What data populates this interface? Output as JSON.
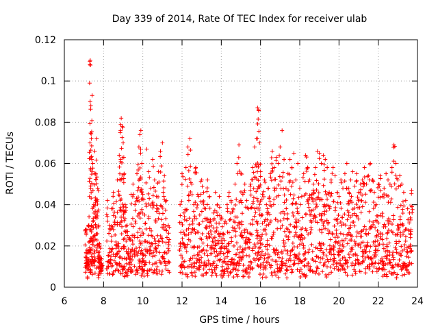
{
  "chart_data": {
    "type": "scatter",
    "title": "Day 339 of 2014, Rate Of TEC Index for receiver ulab",
    "xlabel": "GPS time / hours",
    "ylabel": "ROTI / TECUs",
    "xlim": [
      6,
      24
    ],
    "ylim": [
      0,
      0.12
    ],
    "xticks": [
      6,
      8,
      10,
      12,
      14,
      16,
      18,
      20,
      22,
      24
    ],
    "yticks": [
      0,
      0.02,
      0.04,
      0.06,
      0.08,
      0.1,
      0.12
    ],
    "xtick_labels": [
      "6",
      "8",
      "10",
      "12",
      "14",
      "16",
      "18",
      "20",
      "22",
      "24"
    ],
    "ytick_labels": [
      "0",
      "0.02",
      "0.04",
      "0.06",
      "0.08",
      "0.1",
      "0.12"
    ],
    "grid": true,
    "marker": "+",
    "marker_color": "#ff0000",
    "series": [
      {
        "name": "ROTI",
        "note": "approximate envelope of a dense scatter of + markers; each entry is [time_hours, roti_value]",
        "points": [
          [
            7.1,
            0.028
          ],
          [
            7.15,
            0.018
          ],
          [
            7.2,
            0.012
          ],
          [
            7.25,
            0.03
          ],
          [
            7.3,
            0.108
          ],
          [
            7.32,
            0.11
          ],
          [
            7.35,
            0.088
          ],
          [
            7.38,
            0.072
          ],
          [
            7.42,
            0.093
          ],
          [
            7.45,
            0.06
          ],
          [
            7.5,
            0.04
          ],
          [
            7.55,
            0.066
          ],
          [
            7.6,
            0.055
          ],
          [
            7.65,
            0.072
          ],
          [
            7.7,
            0.048
          ],
          [
            7.75,
            0.03
          ],
          [
            7.8,
            0.02
          ],
          [
            7.85,
            0.014
          ],
          [
            7.9,
            0.01
          ],
          [
            8.2,
            0.042
          ],
          [
            8.3,
            0.03
          ],
          [
            8.4,
            0.038
          ],
          [
            8.5,
            0.046
          ],
          [
            8.6,
            0.034
          ],
          [
            8.7,
            0.052
          ],
          [
            8.8,
            0.064
          ],
          [
            8.85,
            0.075
          ],
          [
            8.9,
            0.082
          ],
          [
            8.95,
            0.078
          ],
          [
            9.0,
            0.07
          ],
          [
            9.05,
            0.055
          ],
          [
            9.1,
            0.04
          ],
          [
            9.2,
            0.03
          ],
          [
            9.3,
            0.024
          ],
          [
            9.4,
            0.045
          ],
          [
            9.5,
            0.05
          ],
          [
            9.6,
            0.04
          ],
          [
            9.7,
            0.055
          ],
          [
            9.8,
            0.068
          ],
          [
            9.85,
            0.074
          ],
          [
            9.9,
            0.076
          ],
          [
            9.95,
            0.06
          ],
          [
            10.0,
            0.045
          ],
          [
            10.1,
            0.035
          ],
          [
            10.2,
            0.067
          ],
          [
            10.3,
            0.056
          ],
          [
            10.4,
            0.048
          ],
          [
            10.5,
            0.062
          ],
          [
            10.6,
            0.052
          ],
          [
            10.7,
            0.044
          ],
          [
            10.8,
            0.056
          ],
          [
            10.9,
            0.066
          ],
          [
            11.0,
            0.07
          ],
          [
            11.1,
            0.054
          ],
          [
            11.2,
            0.042
          ],
          [
            11.3,
            0.03
          ],
          [
            11.9,
            0.04
          ],
          [
            12.0,
            0.055
          ],
          [
            12.1,
            0.036
          ],
          [
            12.2,
            0.058
          ],
          [
            12.3,
            0.068
          ],
          [
            12.4,
            0.072
          ],
          [
            12.5,
            0.05
          ],
          [
            12.6,
            0.04
          ],
          [
            12.7,
            0.058
          ],
          [
            12.8,
            0.045
          ],
          [
            12.9,
            0.035
          ],
          [
            13.0,
            0.052
          ],
          [
            13.1,
            0.046
          ],
          [
            13.2,
            0.038
          ],
          [
            13.3,
            0.052
          ],
          [
            13.4,
            0.044
          ],
          [
            13.5,
            0.03
          ],
          [
            13.6,
            0.036
          ],
          [
            13.7,
            0.046
          ],
          [
            13.8,
            0.04
          ],
          [
            13.9,
            0.044
          ],
          [
            14.0,
            0.034
          ],
          [
            14.1,
            0.026
          ],
          [
            14.2,
            0.032
          ],
          [
            14.3,
            0.04
          ],
          [
            14.4,
            0.046
          ],
          [
            14.5,
            0.042
          ],
          [
            14.6,
            0.038
          ],
          [
            14.7,
            0.05
          ],
          [
            14.8,
            0.06
          ],
          [
            14.9,
            0.069
          ],
          [
            15.0,
            0.055
          ],
          [
            15.1,
            0.045
          ],
          [
            15.2,
            0.05
          ],
          [
            15.3,
            0.042
          ],
          [
            15.4,
            0.038
          ],
          [
            15.5,
            0.05
          ],
          [
            15.6,
            0.058
          ],
          [
            15.7,
            0.068
          ],
          [
            15.8,
            0.072
          ],
          [
            15.85,
            0.087
          ],
          [
            15.9,
            0.086
          ],
          [
            15.95,
            0.07
          ],
          [
            16.0,
            0.056
          ],
          [
            16.1,
            0.045
          ],
          [
            16.2,
            0.052
          ],
          [
            16.3,
            0.04
          ],
          [
            16.4,
            0.048
          ],
          [
            16.5,
            0.055
          ],
          [
            16.6,
            0.066
          ],
          [
            16.7,
            0.058
          ],
          [
            16.8,
            0.063
          ],
          [
            16.9,
            0.06
          ],
          [
            17.0,
            0.068
          ],
          [
            17.1,
            0.076
          ],
          [
            17.2,
            0.062
          ],
          [
            17.3,
            0.048
          ],
          [
            17.4,
            0.055
          ],
          [
            17.5,
            0.062
          ],
          [
            17.6,
            0.058
          ],
          [
            17.7,
            0.065
          ],
          [
            17.8,
            0.052
          ],
          [
            17.9,
            0.06
          ],
          [
            18.0,
            0.048
          ],
          [
            18.1,
            0.044
          ],
          [
            18.2,
            0.055
          ],
          [
            18.3,
            0.064
          ],
          [
            18.4,
            0.058
          ],
          [
            18.5,
            0.052
          ],
          [
            18.6,
            0.045
          ],
          [
            18.7,
            0.05
          ],
          [
            18.8,
            0.058
          ],
          [
            18.9,
            0.066
          ],
          [
            19.0,
            0.065
          ],
          [
            19.1,
            0.06
          ],
          [
            19.2,
            0.064
          ],
          [
            19.3,
            0.062
          ],
          [
            19.4,
            0.058
          ],
          [
            19.5,
            0.046
          ],
          [
            19.6,
            0.052
          ],
          [
            19.7,
            0.058
          ],
          [
            19.8,
            0.054
          ],
          [
            19.9,
            0.046
          ],
          [
            20.0,
            0.044
          ],
          [
            20.1,
            0.052
          ],
          [
            20.2,
            0.048
          ],
          [
            20.3,
            0.055
          ],
          [
            20.4,
            0.06
          ],
          [
            20.5,
            0.048
          ],
          [
            20.6,
            0.052
          ],
          [
            20.7,
            0.056
          ],
          [
            20.8,
            0.049
          ],
          [
            20.9,
            0.055
          ],
          [
            21.0,
            0.046
          ],
          [
            21.1,
            0.05
          ],
          [
            21.2,
            0.052
          ],
          [
            21.3,
            0.058
          ],
          [
            21.4,
            0.05
          ],
          [
            21.5,
            0.054
          ],
          [
            21.6,
            0.06
          ],
          [
            21.7,
            0.052
          ],
          [
            21.8,
            0.046
          ],
          [
            21.9,
            0.04
          ],
          [
            22.0,
            0.05
          ],
          [
            22.1,
            0.054
          ],
          [
            22.2,
            0.044
          ],
          [
            22.3,
            0.048
          ],
          [
            22.4,
            0.055
          ],
          [
            22.5,
            0.052
          ],
          [
            22.6,
            0.05
          ],
          [
            22.7,
            0.058
          ],
          [
            22.8,
            0.069
          ],
          [
            22.9,
            0.06
          ],
          [
            23.0,
            0.052
          ],
          [
            23.1,
            0.054
          ],
          [
            23.2,
            0.05
          ],
          [
            23.3,
            0.046
          ],
          [
            23.4,
            0.042
          ],
          [
            23.5,
            0.038
          ],
          [
            23.6,
            0.036
          ],
          [
            23.7,
            0.047
          ]
        ]
      }
    ]
  }
}
